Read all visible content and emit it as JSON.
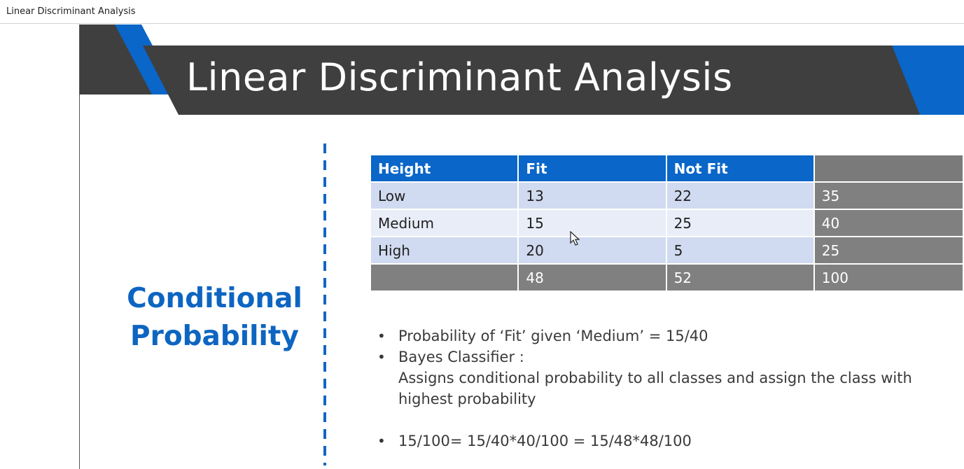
{
  "window": {
    "title": "Linear Discriminant Analysis"
  },
  "slide": {
    "title": "Linear Discriminant Analysis",
    "side_heading_line1": "Conditional",
    "side_heading_line2": "Probability",
    "colors": {
      "accent_blue": "#0a66c8",
      "banner_dark": "#3f3f3f",
      "total_gray": "#808080"
    },
    "table": {
      "headers": [
        "Height",
        "Fit",
        "Not Fit",
        ""
      ],
      "rows": [
        [
          "Low",
          "13",
          "22",
          "35"
        ],
        [
          "Medium",
          "15",
          "25",
          "40"
        ],
        [
          "High",
          "20",
          "5",
          "25"
        ]
      ],
      "totals": [
        "",
        "48",
        "52",
        "100"
      ]
    },
    "bullets": [
      "Probability of ‘Fit’ given ‘Medium’ = 15/40",
      "Bayes Classifier :",
      "15/100= 15/40*40/100 = 15/48*48/100"
    ],
    "bayes_description": "Assigns conditional probability to all classes and assign the class with highest probability",
    "bullet_glyph": "•"
  }
}
